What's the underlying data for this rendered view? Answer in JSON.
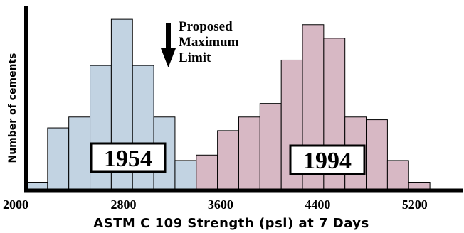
{
  "chart_data": {
    "type": "bar",
    "xlabel": "ASTM C 109 Strength (psi) at 7 Days",
    "ylabel": "Number of cements",
    "xlim": [
      2000,
      5600
    ],
    "ylim": [
      0,
      34
    ],
    "x_ticks": [
      "2000",
      "2800",
      "3600",
      "4400",
      "5200"
    ],
    "bin_width": 175,
    "series": [
      {
        "name": "1954",
        "color": "#c2d3e2",
        "bins": [
          {
            "x0": 2000,
            "value": 1.5
          },
          {
            "x0": 2175,
            "value": 11.5
          },
          {
            "x0": 2350,
            "value": 13.5
          },
          {
            "x0": 2525,
            "value": 23
          },
          {
            "x0": 2700,
            "value": 31.5
          },
          {
            "x0": 2875,
            "value": 23
          },
          {
            "x0": 3050,
            "value": 13.5
          },
          {
            "x0": 3225,
            "value": 5.5
          },
          {
            "x0": 3400,
            "value": 3.5
          }
        ]
      },
      {
        "name": "1994",
        "color": "#d7b8c4",
        "bins": [
          {
            "x0": 3400,
            "value": 6.5
          },
          {
            "x0": 3575,
            "value": 11
          },
          {
            "x0": 3750,
            "value": 13.5
          },
          {
            "x0": 3925,
            "value": 16
          },
          {
            "x0": 4100,
            "value": 24
          },
          {
            "x0": 4275,
            "value": 30.5
          },
          {
            "x0": 4450,
            "value": 28
          },
          {
            "x0": 4625,
            "value": 13.5
          },
          {
            "x0": 4800,
            "value": 13
          },
          {
            "x0": 4975,
            "value": 5.5
          },
          {
            "x0": 5150,
            "value": 1.5
          }
        ]
      }
    ],
    "box_labels": [
      "1954",
      "1994"
    ],
    "annotation": {
      "lines": [
        "Proposed",
        "Maximum",
        "Limit"
      ],
      "x": 3200
    }
  }
}
